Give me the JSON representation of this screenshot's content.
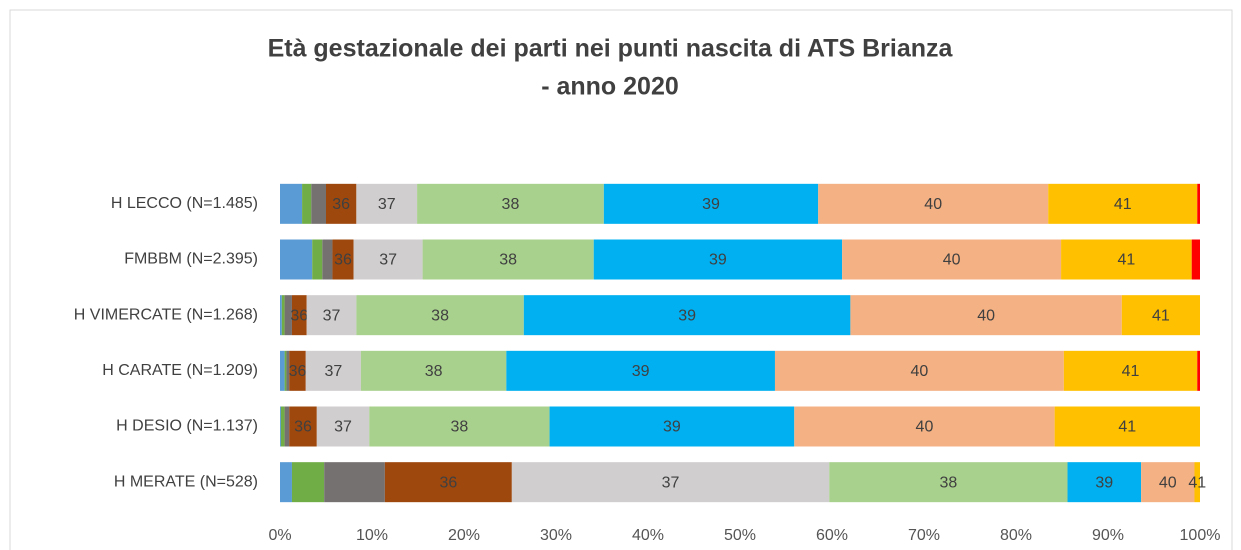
{
  "chart_data": {
    "type": "stacked_bar_horizontal_percent",
    "title": [
      "Età gestazionale dei parti nei punti nascita di ATS Brianza",
      "- anno 2020"
    ],
    "categories": [
      "H LECCO (N=1.485)",
      "FMBBM (N=2.395)",
      "H VIMERCATE (N=1.268)",
      "H CARATE (N=1.209)",
      "H DESIO (N=1.137)",
      "H MERATE (N=528)"
    ],
    "series": [
      {
        "name": null,
        "color": "#5b9bd5",
        "values": [
          2.4,
          3.5,
          0.2,
          0.5,
          0.1,
          1.3
        ]
      },
      {
        "name": null,
        "color": "#70ad47",
        "values": [
          1.0,
          1.1,
          0.3,
          0.2,
          0.4,
          3.5
        ]
      },
      {
        "name": null,
        "color": "#767171",
        "values": [
          1.6,
          1.1,
          0.8,
          0.3,
          0.5,
          6.6
        ]
      },
      {
        "name": "36",
        "color": "#9e480e",
        "values": [
          3.3,
          2.3,
          1.6,
          1.8,
          3.0,
          13.8
        ]
      },
      {
        "name": "37",
        "color": "#d0cece",
        "values": [
          6.6,
          7.5,
          5.4,
          6.0,
          5.7,
          34.5
        ]
      },
      {
        "name": "38",
        "color": "#a9d18e",
        "values": [
          20.3,
          18.6,
          18.2,
          15.8,
          19.6,
          25.9
        ]
      },
      {
        "name": "39",
        "color": "#00b0f0",
        "values": [
          23.3,
          27.0,
          35.5,
          29.2,
          26.6,
          8.0
        ]
      },
      {
        "name": "40",
        "color": "#f4b183",
        "values": [
          25.0,
          23.8,
          29.5,
          31.4,
          28.3,
          5.8
        ]
      },
      {
        "name": "41",
        "color": "#ffc000",
        "values": [
          16.2,
          14.2,
          8.5,
          14.5,
          15.8,
          0.6
        ]
      },
      {
        "name": null,
        "color": "#ff0000",
        "values": [
          0.3,
          0.9,
          0,
          0.3,
          0,
          0
        ]
      }
    ],
    "xlim": [
      0,
      100
    ],
    "xticks": [
      {
        "value": 0,
        "label": "0%"
      },
      {
        "value": 10,
        "label": "10%"
      },
      {
        "value": 20,
        "label": "20%"
      },
      {
        "value": 30,
        "label": "30%"
      },
      {
        "value": 40,
        "label": "40%"
      },
      {
        "value": 50,
        "label": "50%"
      },
      {
        "value": 60,
        "label": "60%"
      },
      {
        "value": 70,
        "label": "70%"
      },
      {
        "value": 80,
        "label": "80%"
      },
      {
        "value": 90,
        "label": "90%"
      },
      {
        "value": 100,
        "label": "100%"
      }
    ],
    "grid": false
  }
}
